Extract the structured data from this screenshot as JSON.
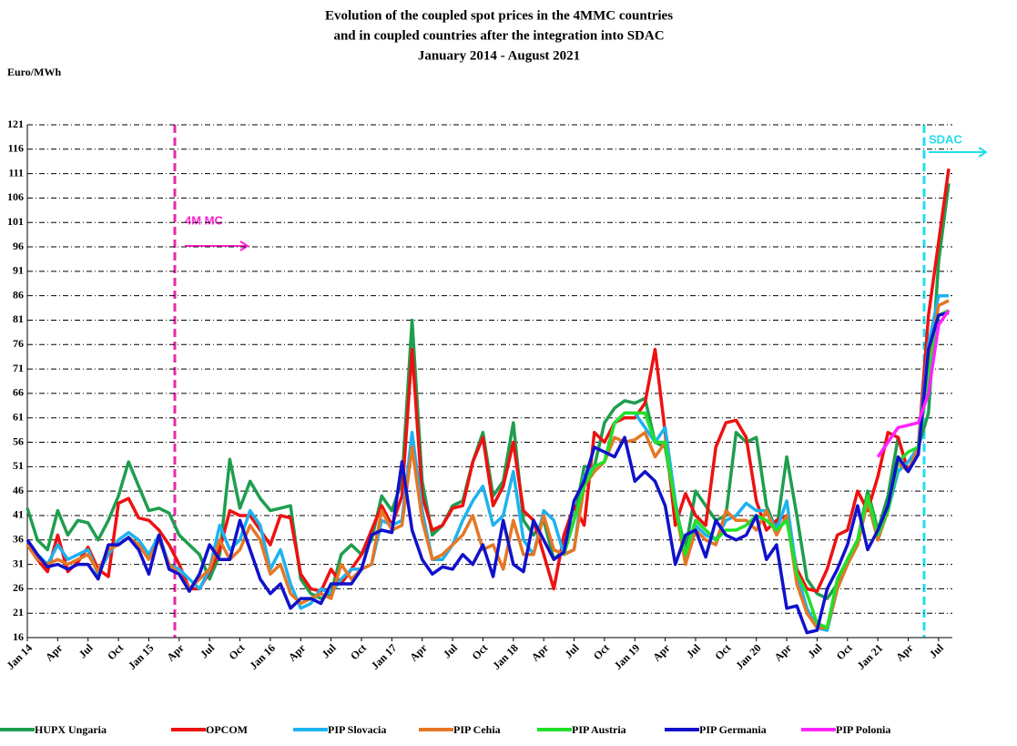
{
  "chart_data": {
    "type": "line",
    "title": [
      "Evolution  of the coupled  spot prices in the 4MMC countries",
      "and in coupled countries  after the integration into  SDAC",
      "January  2014 - August  2021"
    ],
    "y_label": "Euro/MWh",
    "annotations": [
      "4M MC",
      "SDAC"
    ],
    "grid": true,
    "legend": "bottom",
    "ylim": [
      16,
      121
    ],
    "yticks": [
      16,
      21,
      26,
      31,
      36,
      41,
      46,
      51,
      56,
      61,
      66,
      71,
      76,
      81,
      86,
      91,
      96,
      101,
      106,
      111,
      116,
      121
    ],
    "categories": [
      "Jan 14",
      null,
      null,
      "Apr",
      null,
      null,
      "Jul",
      null,
      null,
      "Oct",
      null,
      null,
      "Jan 15",
      null,
      null,
      "Apr",
      null,
      null,
      "Jul",
      null,
      null,
      "Oct",
      null,
      null,
      "Jan 16",
      null,
      null,
      "Apr",
      null,
      null,
      "Jul",
      null,
      null,
      "Oct",
      null,
      null,
      "Jan 17",
      null,
      null,
      "Apr",
      null,
      null,
      "Jul",
      null,
      null,
      "Oct",
      null,
      null,
      "Jan 18",
      null,
      null,
      "Apr",
      null,
      null,
      "Jul",
      null,
      null,
      "Oct",
      null,
      null,
      "Jan 19",
      null,
      null,
      "Apr",
      null,
      null,
      "Jul",
      null,
      null,
      "Oct",
      null,
      null,
      "Jan 20",
      null,
      null,
      "Apr",
      null,
      null,
      "Jul",
      null,
      null,
      "Oct",
      null,
      null,
      "Jan 21",
      null,
      null,
      "Apr",
      null,
      null,
      "Jul",
      null
    ],
    "series": [
      {
        "name": "HUPX  Ungaria",
        "color": "#1e9e4e",
        "values": [
          42.5,
          36,
          34,
          42,
          37,
          40,
          39.5,
          36,
          40,
          45,
          52,
          47,
          42,
          42.5,
          41.5,
          37,
          35,
          33,
          28,
          33,
          52.5,
          42.5,
          48,
          44.5,
          42,
          42.5,
          43,
          28,
          25,
          24,
          25,
          33,
          35,
          33,
          36,
          45,
          42,
          48,
          81,
          48,
          37,
          39,
          43,
          44,
          52,
          58,
          45,
          48,
          60,
          40,
          37,
          40,
          32,
          34,
          40,
          51,
          51,
          60,
          63,
          64.5,
          64,
          65,
          56,
          55,
          43,
          34,
          46,
          43,
          40,
          41,
          58,
          56,
          57,
          43,
          38,
          53,
          41,
          28,
          25,
          24,
          27,
          32,
          36,
          46,
          38,
          45,
          57,
          50,
          55,
          62,
          93,
          109
        ]
      },
      {
        "name": "OPCOM",
        "color": "#ee1111",
        "values": [
          35,
          32,
          29.5,
          37,
          29.5,
          31.5,
          34.5,
          30,
          28.5,
          43.5,
          44.5,
          40.5,
          40,
          38,
          35,
          31,
          26,
          26,
          29.5,
          34,
          42,
          41,
          41,
          38,
          35,
          41,
          40.5,
          29,
          26,
          25.5,
          30,
          27,
          30,
          33,
          38,
          43,
          39,
          45,
          75,
          45,
          38,
          39,
          42.5,
          43,
          52,
          57,
          43,
          47,
          56,
          42,
          40,
          33,
          26,
          37,
          43,
          39,
          58,
          56,
          60,
          61,
          61,
          64,
          75,
          58,
          39,
          45.5,
          41,
          39,
          55,
          60,
          60.5,
          57,
          44,
          38,
          40,
          41,
          30,
          26,
          25.5,
          30,
          37,
          38,
          46,
          42,
          49,
          58,
          57,
          50,
          55,
          82,
          97,
          112
        ]
      },
      {
        "name": "PIP Slovacia",
        "color": "#1eb2ef",
        "values": [
          36,
          33,
          31,
          35,
          32,
          33,
          34,
          29,
          33,
          36,
          37.5,
          36,
          33,
          37,
          31,
          30,
          28,
          26,
          30,
          39,
          34,
          36,
          42,
          39,
          30,
          34,
          27,
          22,
          23,
          26,
          25,
          28,
          30,
          30,
          31,
          40,
          39,
          40,
          58,
          42,
          32,
          32,
          35,
          40,
          44,
          47,
          39,
          41,
          50,
          36,
          33,
          42,
          40,
          33,
          34,
          49,
          51,
          52,
          60,
          62,
          62,
          59,
          56,
          59,
          44,
          32,
          39,
          37,
          36,
          40,
          41,
          43.5,
          42,
          42,
          38,
          44,
          29,
          22,
          18,
          17.5,
          26,
          31,
          35,
          44,
          37,
          42,
          50,
          52,
          55,
          76,
          86,
          86
        ]
      },
      {
        "name": "PIP Cehia",
        "color": "#e57725",
        "values": [
          35,
          32,
          31,
          32,
          31,
          32,
          33,
          29.5,
          34,
          35,
          36.5,
          35,
          32,
          36,
          31,
          29,
          26,
          28,
          30,
          36,
          32,
          34,
          39,
          36,
          29,
          31,
          25,
          23,
          24,
          25,
          24,
          31,
          28,
          30,
          31,
          42,
          38,
          39,
          55,
          40,
          32,
          33,
          35,
          37,
          41,
          34,
          35,
          30,
          40,
          33,
          33,
          41,
          34,
          33,
          34,
          47,
          50,
          52,
          57,
          56,
          56.5,
          58,
          53,
          56,
          43,
          31,
          38,
          36,
          35,
          42,
          40,
          40,
          38,
          42,
          37,
          41,
          27,
          21,
          18,
          18,
          26,
          31,
          35,
          44,
          36,
          42,
          52,
          50,
          55,
          72,
          84,
          85
        ]
      },
      {
        "name": "PIP Austria",
        "color": "#22e02a",
        "values": [
          null,
          null,
          null,
          null,
          null,
          null,
          null,
          null,
          null,
          null,
          null,
          null,
          null,
          null,
          null,
          null,
          null,
          null,
          null,
          null,
          null,
          null,
          null,
          null,
          null,
          null,
          null,
          null,
          null,
          null,
          null,
          null,
          null,
          null,
          null,
          null,
          null,
          null,
          null,
          null,
          null,
          null,
          null,
          null,
          null,
          null,
          null,
          null,
          null,
          null,
          null,
          null,
          null,
          33,
          40,
          47,
          51,
          52,
          60,
          62,
          62,
          62,
          56,
          56,
          43,
          33,
          40,
          38,
          36,
          38,
          38,
          39,
          41,
          40,
          38,
          40,
          29,
          25,
          19,
          18,
          28,
          32,
          36,
          45,
          37,
          42,
          52,
          54,
          55,
          70,
          82,
          83
        ]
      },
      {
        "name": "PIP Germania",
        "color": "#1111cc",
        "values": [
          36,
          33,
          30.5,
          31,
          30,
          31,
          31,
          28,
          35,
          35,
          36.5,
          34,
          29,
          37,
          30,
          29,
          25.5,
          29,
          35,
          32,
          32,
          40,
          34,
          28,
          25,
          27,
          22,
          24,
          24,
          23,
          27,
          27,
          27,
          30,
          37,
          38,
          37.5,
          52,
          38,
          32,
          29,
          30.5,
          30,
          33,
          31,
          35,
          28.5,
          40,
          31,
          29.5,
          40,
          36,
          32,
          33.5,
          44,
          48,
          55,
          54,
          53,
          57,
          48,
          50,
          48,
          43,
          31,
          37,
          38,
          32.5,
          40,
          37,
          36,
          37,
          41,
          32,
          35,
          22,
          22.5,
          17,
          17.5,
          26,
          30,
          35,
          43,
          34,
          38,
          43,
          53,
          50,
          53.5,
          75,
          82,
          82.5
        ]
      },
      {
        "name": "PIP Polonia",
        "color": "#ff22ff",
        "values": [
          null,
          null,
          null,
          null,
          null,
          null,
          null,
          null,
          null,
          null,
          null,
          null,
          null,
          null,
          null,
          null,
          null,
          null,
          null,
          null,
          null,
          null,
          null,
          null,
          null,
          null,
          null,
          null,
          null,
          null,
          null,
          null,
          null,
          null,
          null,
          null,
          null,
          null,
          null,
          null,
          null,
          null,
          null,
          null,
          null,
          null,
          null,
          null,
          null,
          null,
          null,
          null,
          null,
          null,
          null,
          null,
          null,
          null,
          null,
          null,
          null,
          null,
          null,
          null,
          null,
          null,
          null,
          null,
          null,
          null,
          null,
          null,
          null,
          null,
          null,
          null,
          null,
          null,
          null,
          null,
          null,
          null,
          null,
          null,
          53,
          56,
          59,
          59.5,
          60,
          66,
          80,
          83
        ]
      }
    ]
  }
}
